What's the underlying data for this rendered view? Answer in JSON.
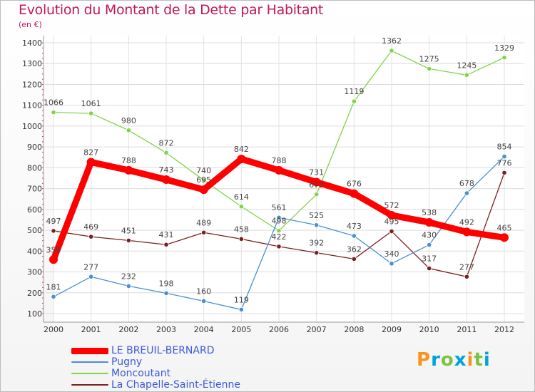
{
  "title": "Evolution du Montant de la Dette par Habitant",
  "subtitle": "(en €)",
  "logo": {
    "letters": [
      "P",
      "r",
      "o",
      "x",
      "i",
      "t",
      "i"
    ],
    "colors": [
      "#f7941d",
      "#00a3e0",
      "#7dc242",
      "#00a3e0",
      "#f7941d",
      "#7dc242",
      "#00a3e0"
    ]
  },
  "chart_data": {
    "type": "line",
    "x": [
      "2000",
      "2001",
      "2002",
      "2003",
      "2004",
      "2005",
      "2006",
      "2007",
      "2008",
      "2009",
      "2010",
      "2011",
      "2012"
    ],
    "ylim": [
      100,
      1400
    ],
    "yticks": [
      100,
      200,
      300,
      400,
      500,
      600,
      700,
      800,
      900,
      1000,
      1100,
      1200,
      1300,
      1400
    ],
    "grid": true,
    "legend_position": "bottom-left",
    "series": [
      {
        "name": "LE BREUIL-BERNARD",
        "color": "#ff0000",
        "values": [
          359,
          827,
          788,
          743,
          695,
          842,
          788,
          731,
          676,
          572,
          538,
          492,
          465
        ]
      },
      {
        "name": "Pugny",
        "color": "#4a8fd4",
        "values": [
          181,
          277,
          232,
          198,
          160,
          119,
          561,
          525,
          473,
          340,
          430,
          678,
          854
        ]
      },
      {
        "name": "Moncoutant",
        "color": "#80d44a",
        "values": [
          1066,
          1061,
          980,
          872,
          740,
          614,
          498,
          672,
          1119,
          1362,
          1275,
          1245,
          1329
        ]
      },
      {
        "name": "La Chapelle-Saint-Étienne",
        "color": "#7a1f1f",
        "values": [
          497,
          469,
          451,
          431,
          489,
          458,
          422,
          392,
          362,
          495,
          317,
          277,
          776
        ]
      }
    ]
  }
}
